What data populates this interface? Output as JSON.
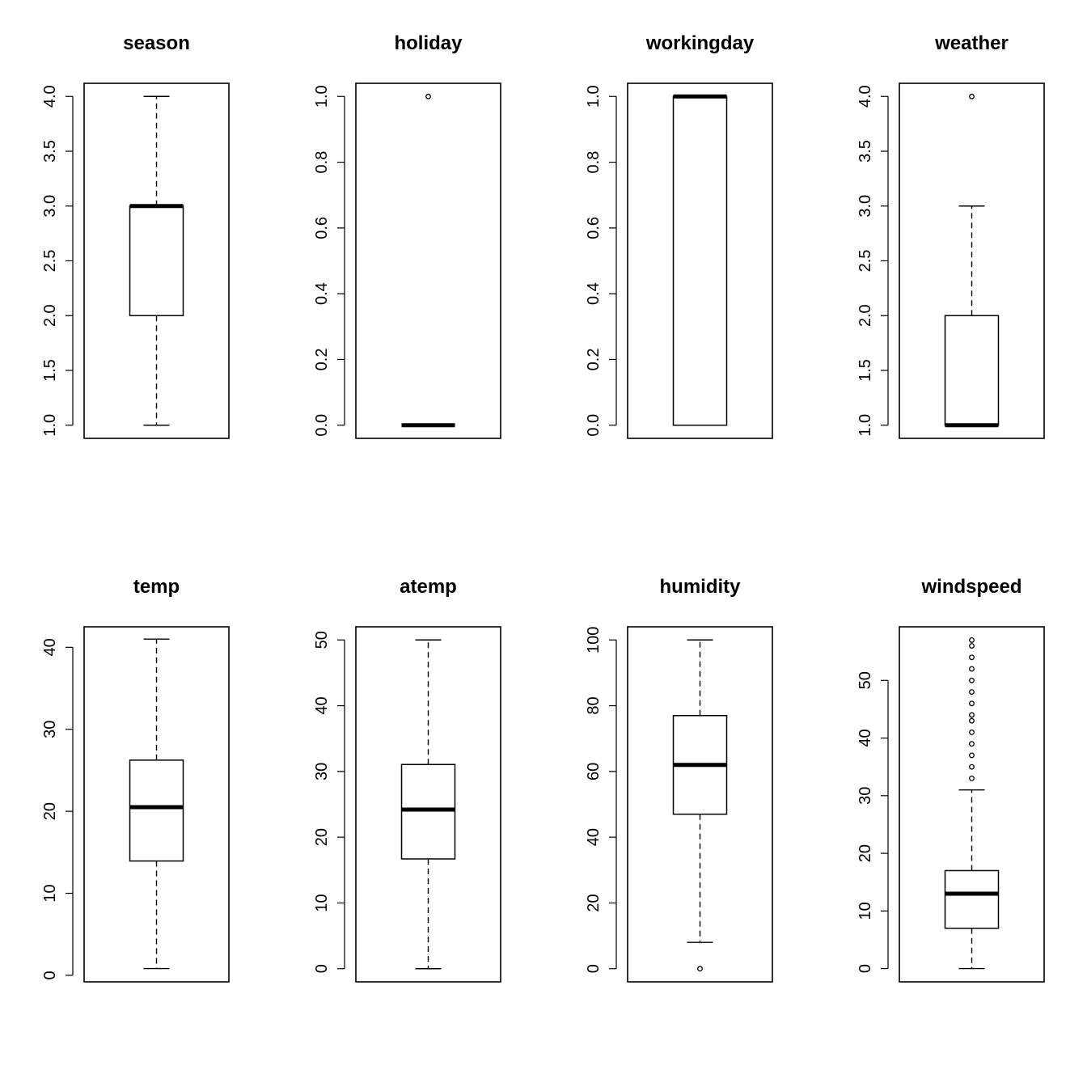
{
  "chart_data": [
    {
      "type": "boxplot",
      "title": "season",
      "ylim": [
        0.88,
        4.12
      ],
      "ticks": [
        1.0,
        1.5,
        2.0,
        2.5,
        3.0,
        3.5,
        4.0
      ],
      "tick_labels": [
        "1.0",
        "1.5",
        "2.0",
        "2.5",
        "3.0",
        "3.5",
        "4.0"
      ],
      "stats": {
        "whisker_low": 1,
        "q1": 2,
        "median": 3,
        "q3": 3,
        "whisker_high": 4
      },
      "outliers": []
    },
    {
      "type": "boxplot",
      "title": "holiday",
      "ylim": [
        -0.04,
        1.04
      ],
      "ticks": [
        0.0,
        0.2,
        0.4,
        0.6,
        0.8,
        1.0
      ],
      "tick_labels": [
        "0.0",
        "0.2",
        "0.4",
        "0.6",
        "0.8",
        "1.0"
      ],
      "stats": {
        "whisker_low": 0,
        "q1": 0,
        "median": 0,
        "q3": 0,
        "whisker_high": 0
      },
      "outliers": [
        1
      ]
    },
    {
      "type": "boxplot",
      "title": "workingday",
      "ylim": [
        -0.04,
        1.04
      ],
      "ticks": [
        0.0,
        0.2,
        0.4,
        0.6,
        0.8,
        1.0
      ],
      "tick_labels": [
        "0.0",
        "0.2",
        "0.4",
        "0.6",
        "0.8",
        "1.0"
      ],
      "stats": {
        "whisker_low": 0,
        "q1": 0,
        "median": 1,
        "q3": 1,
        "whisker_high": 1
      },
      "outliers": []
    },
    {
      "type": "boxplot",
      "title": "weather",
      "ylim": [
        0.88,
        4.12
      ],
      "ticks": [
        1.0,
        1.5,
        2.0,
        2.5,
        3.0,
        3.5,
        4.0
      ],
      "tick_labels": [
        "1.0",
        "1.5",
        "2.0",
        "2.5",
        "3.0",
        "3.5",
        "4.0"
      ],
      "stats": {
        "whisker_low": 1,
        "q1": 1,
        "median": 1,
        "q3": 2,
        "whisker_high": 3
      },
      "outliers": [
        4
      ]
    },
    {
      "type": "boxplot",
      "title": "temp",
      "ylim": [
        -0.8,
        42.5
      ],
      "ticks": [
        0,
        10,
        20,
        30,
        40
      ],
      "tick_labels": [
        "0",
        "10",
        "20",
        "30",
        "40"
      ],
      "stats": {
        "whisker_low": 0.82,
        "q1": 13.94,
        "median": 20.5,
        "q3": 26.24,
        "whisker_high": 41
      },
      "outliers": []
    },
    {
      "type": "boxplot",
      "title": "atemp",
      "ylim": [
        -2,
        52
      ],
      "ticks": [
        0,
        10,
        20,
        30,
        40,
        50
      ],
      "tick_labels": [
        "0",
        "10",
        "20",
        "30",
        "40",
        "50"
      ],
      "stats": {
        "whisker_low": 0,
        "q1": 16.7,
        "median": 24.2,
        "q3": 31.06,
        "whisker_high": 50
      },
      "outliers": []
    },
    {
      "type": "boxplot",
      "title": "humidity",
      "ylim": [
        -4,
        104
      ],
      "ticks": [
        0,
        20,
        40,
        60,
        80,
        100
      ],
      "tick_labels": [
        "0",
        "20",
        "40",
        "60",
        "80",
        "100"
      ],
      "stats": {
        "whisker_low": 8,
        "q1": 47,
        "median": 62,
        "q3": 77,
        "whisker_high": 100
      },
      "outliers": [
        0
      ]
    },
    {
      "type": "boxplot",
      "title": "windspeed",
      "ylim": [
        -2.3,
        59.3
      ],
      "ticks": [
        0,
        10,
        20,
        30,
        40,
        50
      ],
      "tick_labels": [
        "0",
        "10",
        "20",
        "30",
        "40",
        "50"
      ],
      "stats": {
        "whisker_low": 0,
        "q1": 7,
        "median": 13,
        "q3": 17,
        "whisker_high": 31
      },
      "outliers": [
        33,
        35,
        37,
        39,
        41,
        43,
        44,
        46,
        48,
        50,
        52,
        54,
        56,
        57
      ]
    }
  ]
}
